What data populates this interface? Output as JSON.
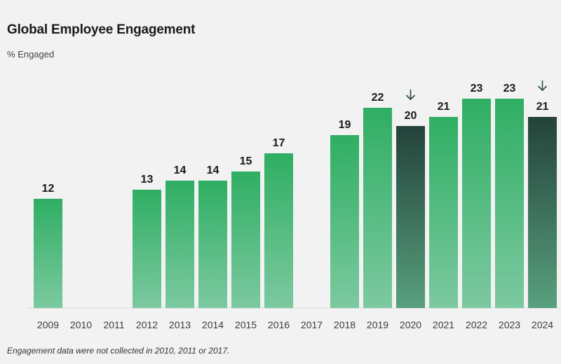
{
  "header": {
    "title": "Global Employee Engagement",
    "subtitle": "% Engaged"
  },
  "footnote": "Engagement data were not collected in 2010, 2011 or 2017.",
  "colors": {
    "bar_green_top": "#2fae63",
    "bar_green_bottom": "#7cc9a0",
    "bar_dark_top": "#23423a",
    "bar_dark_bottom": "#58a07e",
    "arrow": "#2c4a3c"
  },
  "chart_data": {
    "type": "bar",
    "title": "Global Employee Engagement",
    "ylabel": "% Engaged",
    "xlabel": "",
    "ylim": [
      0,
      23
    ],
    "categories": [
      "2009",
      "2010",
      "2011",
      "2012",
      "2013",
      "2014",
      "2015",
      "2016",
      "2017",
      "2018",
      "2019",
      "2020",
      "2021",
      "2022",
      "2023",
      "2024"
    ],
    "values": [
      12,
      null,
      null,
      13,
      14,
      14,
      15,
      17,
      null,
      19,
      22,
      20,
      21,
      23,
      23,
      21
    ],
    "decline_marked": [
      "2020",
      "2024"
    ],
    "data_labels": [
      "12",
      "",
      "",
      "13",
      "14",
      "14",
      "15",
      "17",
      "",
      "19",
      "22",
      "20",
      "21",
      "23",
      "23",
      "21"
    ]
  }
}
